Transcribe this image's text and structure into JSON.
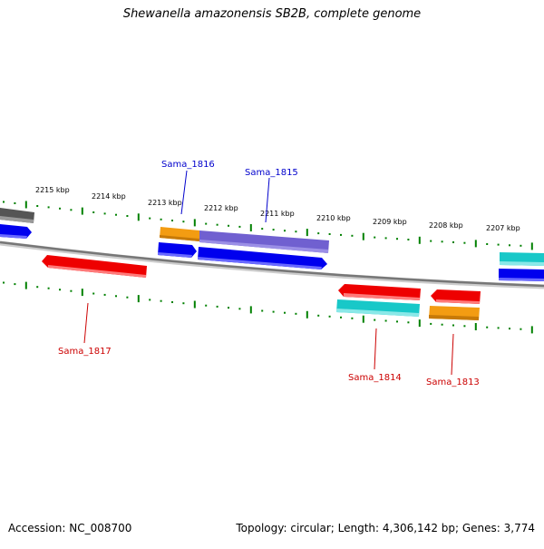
{
  "header": {
    "title": "Shewanella amazonensis SB2B, complete genome"
  },
  "footer": {
    "accession": "Accession: NC_008700",
    "summary": "Topology: circular; Length: 4,306,142 bp; Genes: 3,774"
  },
  "colors": {
    "backbone": "#808080",
    "tick": "#008000",
    "forward_label": "#0000cc",
    "reverse_label": "#cc0000",
    "blue": "#0000ee",
    "red": "#ee0000",
    "orange": "#f39c12",
    "purple": "#7060d0",
    "cyan": "#18c8c8",
    "gray": "#555555"
  },
  "tick_labels": [
    "2215 kbp",
    "2214 kbp",
    "2213 kbp",
    "2212 kbp",
    "2211 kbp",
    "2210 kbp",
    "2209 kbp",
    "2208 kbp",
    "2207 kbp"
  ],
  "gene_labels": {
    "sama_1816": "Sama_1816",
    "sama_1815": "Sama_1815",
    "sama_1817": "Sama_1817",
    "sama_1814": "Sama_1814",
    "sama_1813": "Sama_1813"
  }
}
